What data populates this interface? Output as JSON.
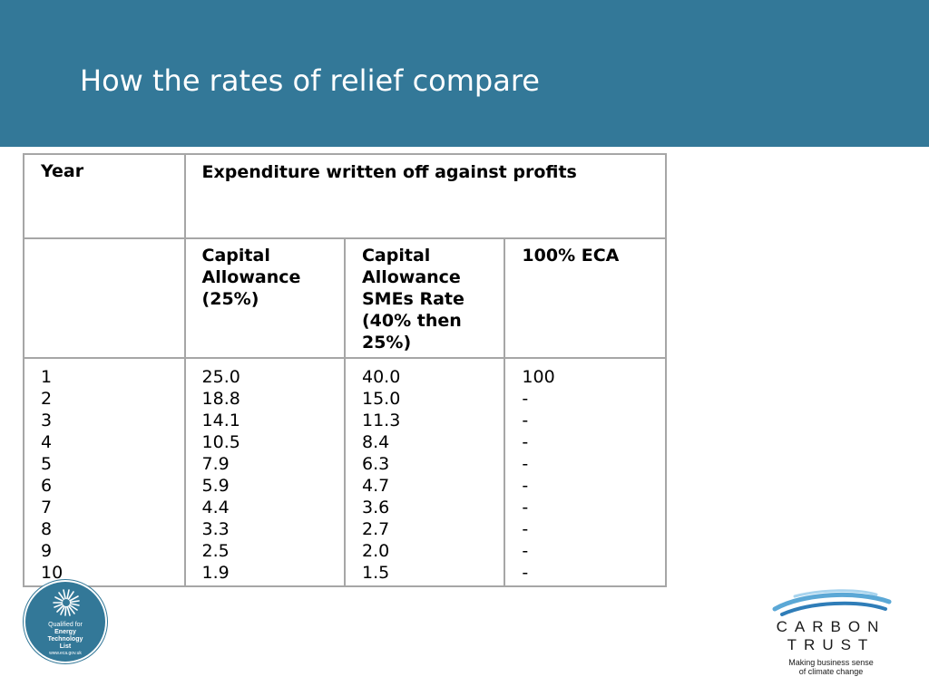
{
  "slide": {
    "title": "How the rates of relief compare"
  },
  "table": {
    "header1": {
      "year": "Year",
      "expenditure": "Expenditure written off against profits"
    },
    "header2": {
      "capital_allowance": "Capital Allowance (25%)",
      "capital_allowance_smes": "Capital Allowance SMEs Rate (40% then 25%)",
      "eca": "100% ECA"
    },
    "rows": [
      {
        "year": "1",
        "ca": "25.0",
        "smes": "40.0",
        "eca": "100"
      },
      {
        "year": "2",
        "ca": "18.8",
        "smes": "15.0",
        "eca": "-"
      },
      {
        "year": "3",
        "ca": "14.1",
        "smes": "11.3",
        "eca": "-"
      },
      {
        "year": "4",
        "ca": "10.5",
        "smes": "8.4",
        "eca": "-"
      },
      {
        "year": "5",
        "ca": "7.9",
        "smes": "6.3",
        "eca": "-"
      },
      {
        "year": "6",
        "ca": "5.9",
        "smes": "4.7",
        "eca": "-"
      },
      {
        "year": "7",
        "ca": "4.4",
        "smes": "3.6",
        "eca": "-"
      },
      {
        "year": "8",
        "ca": "3.3",
        "smes": "2.7",
        "eca": "-"
      },
      {
        "year": "9",
        "ca": "2.5",
        "smes": "2.0",
        "eca": "-"
      },
      {
        "year": "10",
        "ca": "1.9",
        "smes": "1.5",
        "eca": "-"
      }
    ]
  },
  "badge": {
    "line1": "Qualified for",
    "line2": "Energy",
    "line3": "Technology",
    "line4": "List",
    "url": "www.eca.gov.uk"
  },
  "logo": {
    "word1": "CARBON",
    "word2": "TRUST",
    "tagline1": "Making business sense",
    "tagline2": "of climate change"
  },
  "colors": {
    "header_bg": "#337898",
    "table_border": "#a6a6a6"
  }
}
